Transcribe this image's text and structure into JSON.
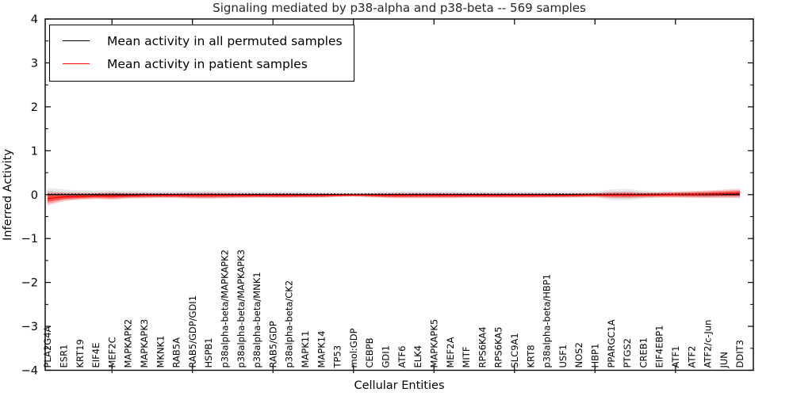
{
  "figure": {
    "title": "Signaling mediated by p38-alpha and p38-beta -- 569 samples",
    "xlabel": "Cellular Entities",
    "ylabel": "Inferred Activity"
  },
  "legend": {
    "items": [
      {
        "label": "Mean activity in all permuted samples",
        "color": "#000000"
      },
      {
        "label": "Mean activity in patient samples",
        "color": "#ff0000"
      }
    ]
  },
  "colors": {
    "permuted_line": "#000000",
    "patient_line": "#ff0000",
    "permuted_band": "#999999",
    "patient_band": "#ff0000",
    "frame": "#000000"
  },
  "chart_data": {
    "type": "line",
    "title": "Signaling mediated by p38-alpha and p38-beta -- 569 samples",
    "xlabel": "Cellular Entities",
    "ylabel": "Inferred Activity",
    "ylim": [
      -4,
      4
    ],
    "ytick_values": [
      4,
      3,
      2,
      1,
      0,
      -1,
      -2,
      -3,
      -4
    ],
    "ytick_labels": [
      "4",
      "3",
      "2",
      "1",
      "0",
      "−1",
      "−2",
      "−3",
      "−4"
    ],
    "grid": false,
    "legend_position": "upper left",
    "categories": [
      "PLA2G4A",
      "ESR1",
      "KRT19",
      "EIF4E",
      "MEF2C",
      "MAPKAPK2",
      "MAPKAPK3",
      "MKNK1",
      "RAB5A",
      "RAB5/GDP/GDI1",
      "HSPB1",
      "p38alpha-beta/MAPKAPK2",
      "p38alpha-beta/MAPKAPK3",
      "p38alpha-beta/MNK1",
      "RAB5/GDP",
      "p38alpha-beta/CK2",
      "MAPK11",
      "MAPK14",
      "TP53",
      "mol:GDP",
      "CEBPB",
      "GDI1",
      "ATF6",
      "ELK4",
      "MAPKAPK5",
      "MEF2A",
      "MITF",
      "RPS6KA4",
      "RPS6KA5",
      "SLC9A1",
      "KRT8",
      "p38alpha-beta/HBP1",
      "USF1",
      "NOS2",
      "HBP1",
      "PPARGC1A",
      "PTGS2",
      "CREB1",
      "EIF4EBP1",
      "ATF1",
      "ATF2",
      "ATF2/c-Jun",
      "JUN",
      "DDIT3"
    ],
    "series": [
      {
        "name": "Mean activity in all permuted samples",
        "values": [
          0,
          0,
          0,
          0,
          0,
          0,
          0,
          0,
          0,
          0,
          0,
          0,
          0,
          0,
          0,
          0,
          0,
          0,
          0,
          0,
          0,
          0,
          0,
          0,
          0,
          0,
          0,
          0,
          0,
          0,
          0,
          0,
          0,
          0,
          0,
          0,
          0,
          0,
          0,
          0,
          0,
          0,
          0,
          0
        ],
        "band_halfwidth": [
          0.15,
          0.12,
          0.1,
          0.09,
          0.095,
          0.085,
          0.08,
          0.075,
          0.075,
          0.09,
          0.09,
          0.08,
          0.075,
          0.07,
          0.07,
          0.07,
          0.065,
          0.06,
          0.05,
          0.045,
          0.055,
          0.07,
          0.075,
          0.075,
          0.075,
          0.075,
          0.07,
          0.07,
          0.07,
          0.07,
          0.07,
          0.065,
          0.065,
          0.06,
          0.06,
          0.12,
          0.13,
          0.09,
          0.07,
          0.07,
          0.07,
          0.075,
          0.075,
          0.08
        ]
      },
      {
        "name": "Mean activity in patient samples",
        "values": [
          -0.09,
          -0.05,
          -0.04,
          -0.03,
          -0.03,
          -0.025,
          -0.02,
          -0.02,
          -0.02,
          -0.02,
          -0.02,
          -0.02,
          -0.02,
          -0.02,
          -0.02,
          -0.02,
          -0.02,
          -0.02,
          -0.015,
          -0.01,
          -0.015,
          -0.02,
          -0.02,
          -0.02,
          -0.02,
          -0.02,
          -0.02,
          -0.02,
          -0.02,
          -0.02,
          -0.02,
          -0.02,
          -0.02,
          -0.015,
          -0.01,
          -0.01,
          -0.01,
          -0.01,
          -0.005,
          0,
          0.005,
          0.01,
          0.02,
          0.03
        ],
        "band_halfwidth": [
          0.16,
          0.1,
          0.08,
          0.07,
          0.085,
          0.065,
          0.06,
          0.055,
          0.055,
          0.065,
          0.07,
          0.06,
          0.055,
          0.05,
          0.055,
          0.055,
          0.05,
          0.05,
          0.04,
          0.035,
          0.045,
          0.055,
          0.06,
          0.06,
          0.06,
          0.06,
          0.055,
          0.055,
          0.055,
          0.055,
          0.055,
          0.05,
          0.05,
          0.05,
          0.05,
          0.07,
          0.075,
          0.06,
          0.06,
          0.065,
          0.075,
          0.085,
          0.095,
          0.105
        ]
      }
    ],
    "zero_reference_line": 0
  }
}
